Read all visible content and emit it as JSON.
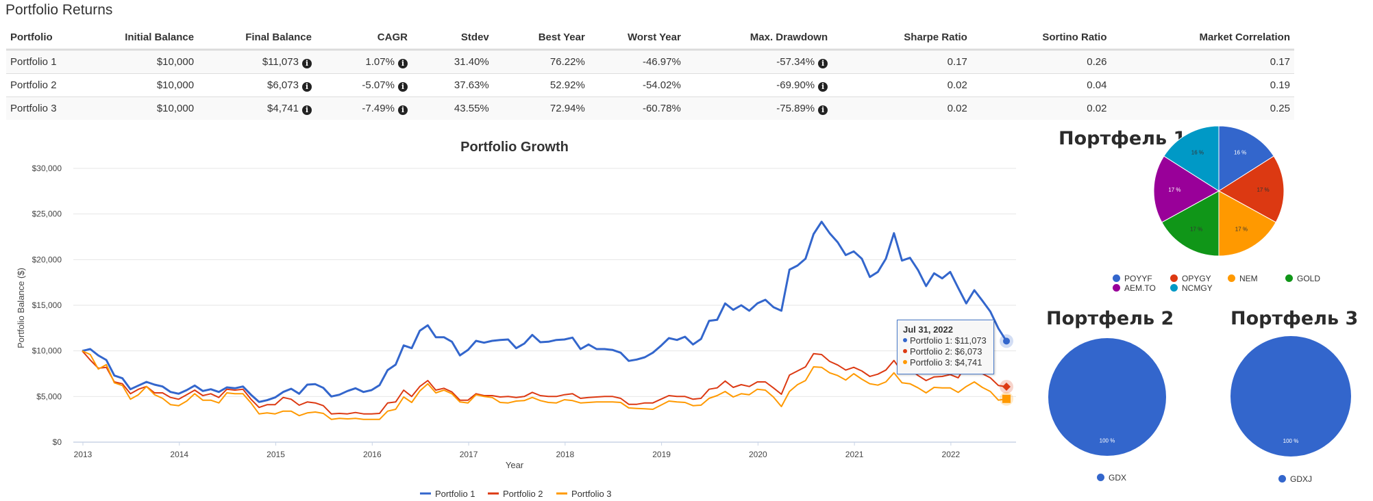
{
  "page": {
    "title": "Portfolio Returns"
  },
  "table": {
    "headers": [
      "Portfolio",
      "Initial Balance",
      "Final Balance",
      "CAGR",
      "Stdev",
      "Best Year",
      "Worst Year",
      "Max. Drawdown",
      "Sharpe Ratio",
      "Sortino Ratio",
      "Market Correlation"
    ],
    "rows": [
      {
        "portfolio": "Portfolio 1",
        "initial_balance": "$10,000",
        "final_balance": "$11,073",
        "cagr": "1.07%",
        "stdev": "31.40%",
        "best_year": "76.22%",
        "worst_year": "-46.97%",
        "max_drawdown": "-57.34%",
        "sharpe": "0.17",
        "sortino": "0.26",
        "market_correlation": "0.17"
      },
      {
        "portfolio": "Portfolio 2",
        "initial_balance": "$10,000",
        "final_balance": "$6,073",
        "cagr": "-5.07%",
        "stdev": "37.63%",
        "best_year": "52.92%",
        "worst_year": "-54.02%",
        "max_drawdown": "-69.90%",
        "sharpe": "0.02",
        "sortino": "0.04",
        "market_correlation": "0.19"
      },
      {
        "portfolio": "Portfolio 3",
        "initial_balance": "$10,000",
        "final_balance": "$4,741",
        "cagr": "-7.49%",
        "stdev": "43.55%",
        "best_year": "72.94%",
        "worst_year": "-60.78%",
        "max_drawdown": "-75.89%",
        "sharpe": "0.02",
        "sortino": "0.02",
        "market_correlation": "0.25"
      }
    ],
    "info_icon_glyph": "i"
  },
  "tooltip": {
    "date": "Jul 31, 2022",
    "rows": [
      {
        "label": "Portfolio 1: $11,073",
        "color": "#3366cc"
      },
      {
        "label": "Portfolio 2: $6,073",
        "color": "#dc3912"
      },
      {
        "label": "Portfolio 3: $4,741",
        "color": "#ff9900"
      }
    ]
  },
  "chart_data": [
    {
      "type": "line",
      "title": "Portfolio Growth",
      "xlabel": "Year",
      "ylabel": "Portfolio Balance ($)",
      "x_start": "2013-01",
      "x_end": "2022-07-31",
      "x_frequency": "monthly",
      "x_ticks": [
        "2013",
        "2014",
        "2015",
        "2016",
        "2017",
        "2018",
        "2019",
        "2020",
        "2021",
        "2022"
      ],
      "y_ticks": [
        "$0",
        "$5,000",
        "$10,000",
        "$15,000",
        "$20,000",
        "$25,000",
        "$30,000"
      ],
      "ylim": [
        0,
        30000
      ],
      "grid": true,
      "legend_position": "bottom",
      "series": [
        {
          "name": "Portfolio 1",
          "color": "#3366cc",
          "marker": "circle",
          "values": [
            10000,
            10200,
            9500,
            9000,
            7300,
            7000,
            5800,
            6200,
            6600,
            6300,
            6100,
            5500,
            5300,
            5700,
            6200,
            5600,
            5800,
            5500,
            6000,
            5900,
            6100,
            5200,
            4400,
            4600,
            4900,
            5500,
            5850,
            5300,
            6300,
            6350,
            5950,
            5000,
            5200,
            5600,
            5900,
            5500,
            5700,
            6250,
            7900,
            8500,
            10600,
            10300,
            12200,
            12800,
            11500,
            11500,
            11000,
            9500,
            10100,
            11100,
            10900,
            11100,
            11200,
            11250,
            10300,
            10800,
            11750,
            10950,
            11000,
            11200,
            11250,
            11450,
            10200,
            10700,
            10200,
            10200,
            10100,
            9800,
            8900,
            9050,
            9300,
            9800,
            10550,
            11400,
            11200,
            11550,
            10700,
            11300,
            13300,
            13400,
            15200,
            14500,
            15000,
            14400,
            15200,
            15600,
            14800,
            14400,
            18900,
            19350,
            20100,
            22800,
            24150,
            22900,
            21900,
            20500,
            20900,
            20100,
            18100,
            18650,
            20100,
            22900,
            19900,
            20200,
            18850,
            17100,
            18500,
            17950,
            18650,
            16900,
            15200,
            16650,
            15500,
            14300,
            12450,
            11073
          ]
        },
        {
          "name": "Portfolio 2",
          "color": "#dc3912",
          "marker": "diamond",
          "values": [
            10000,
            9000,
            8100,
            8200,
            6600,
            6400,
            5300,
            5800,
            6100,
            5400,
            5400,
            4900,
            4700,
            5200,
            5700,
            5100,
            5300,
            4900,
            5800,
            5700,
            5800,
            4700,
            3800,
            4100,
            4100,
            4900,
            4700,
            4050,
            4400,
            4300,
            4000,
            3100,
            3150,
            3100,
            3250,
            3100,
            3100,
            3150,
            4300,
            4400,
            5700,
            5000,
            6100,
            6750,
            5700,
            5900,
            5500,
            4600,
            4600,
            5300,
            5100,
            5100,
            4950,
            5000,
            4900,
            5000,
            5450,
            5100,
            5000,
            5000,
            5200,
            5300,
            4800,
            4900,
            4950,
            5000,
            5000,
            4800,
            4150,
            4150,
            4300,
            4300,
            4700,
            5100,
            5000,
            5000,
            4700,
            4800,
            5800,
            5950,
            6700,
            6000,
            6300,
            6100,
            6600,
            6600,
            5950,
            5250,
            7350,
            7800,
            8250,
            9700,
            9600,
            8850,
            8450,
            7900,
            8200,
            7800,
            7200,
            7450,
            7900,
            8950,
            7700,
            7950,
            7300,
            6750,
            7150,
            7200,
            7400,
            7050,
            8450,
            8100,
            7500,
            7050,
            6200,
            6073
          ]
        },
        {
          "name": "Portfolio 3",
          "color": "#ff9900",
          "marker": "square",
          "values": [
            10000,
            9600,
            8000,
            8500,
            6500,
            6200,
            4700,
            5200,
            6100,
            5200,
            4800,
            4100,
            4000,
            4500,
            5300,
            4600,
            4600,
            4300,
            5400,
            5300,
            5300,
            4300,
            3100,
            3200,
            3100,
            3400,
            3400,
            2900,
            3200,
            3300,
            3150,
            2500,
            2600,
            2550,
            2600,
            2500,
            2500,
            2500,
            3400,
            3600,
            4950,
            4350,
            5600,
            6400,
            5400,
            5700,
            5300,
            4400,
            4300,
            5200,
            5000,
            4900,
            4350,
            4300,
            4500,
            4550,
            4900,
            4550,
            4350,
            4300,
            4650,
            4550,
            4300,
            4350,
            4400,
            4400,
            4400,
            4350,
            3750,
            3700,
            3650,
            3600,
            4050,
            4500,
            4400,
            4350,
            4000,
            4050,
            4800,
            5100,
            5550,
            4950,
            5300,
            5200,
            5800,
            5700,
            4950,
            3900,
            5550,
            6300,
            6750,
            8250,
            8200,
            7600,
            7300,
            6800,
            7500,
            6900,
            6400,
            6250,
            6600,
            7600,
            6500,
            6400,
            5950,
            5400,
            6000,
            5950,
            5950,
            5450,
            6100,
            6600,
            6000,
            5550,
            4600,
            4741
          ]
        }
      ]
    },
    {
      "type": "pie",
      "title": "Портфель 1",
      "slices": [
        {
          "label": "POYYF",
          "value": 16,
          "display": "16 %",
          "color": "#3366cc",
          "text_color": "#ffffff"
        },
        {
          "label": "OPYGY",
          "value": 17,
          "display": "17 %",
          "color": "#dc3912",
          "text_color": "#333333"
        },
        {
          "label": "NEM",
          "value": 17,
          "display": "17 %",
          "color": "#ff9900",
          "text_color": "#333333"
        },
        {
          "label": "GOLD",
          "value": 17,
          "display": "17 %",
          "color": "#109618",
          "text_color": "#333333"
        },
        {
          "label": "AEM.TO",
          "value": 17,
          "display": "17 %",
          "color": "#990099",
          "text_color": "#ffffff"
        },
        {
          "label": "NCMGY",
          "value": 16,
          "display": "16 %",
          "color": "#0099c6",
          "text_color": "#333333"
        }
      ],
      "legend_position": "bottom"
    },
    {
      "type": "pie",
      "title": "Портфель 2",
      "slices": [
        {
          "label": "GDX",
          "value": 100,
          "display": "100 %",
          "color": "#3366cc",
          "text_color": "#ffffff"
        }
      ],
      "legend_position": "bottom"
    },
    {
      "type": "pie",
      "title": "Портфель 3",
      "slices": [
        {
          "label": "GDXJ",
          "value": 100,
          "display": "100 %",
          "color": "#3366cc",
          "text_color": "#ffffff"
        }
      ],
      "legend_position": "bottom"
    }
  ]
}
